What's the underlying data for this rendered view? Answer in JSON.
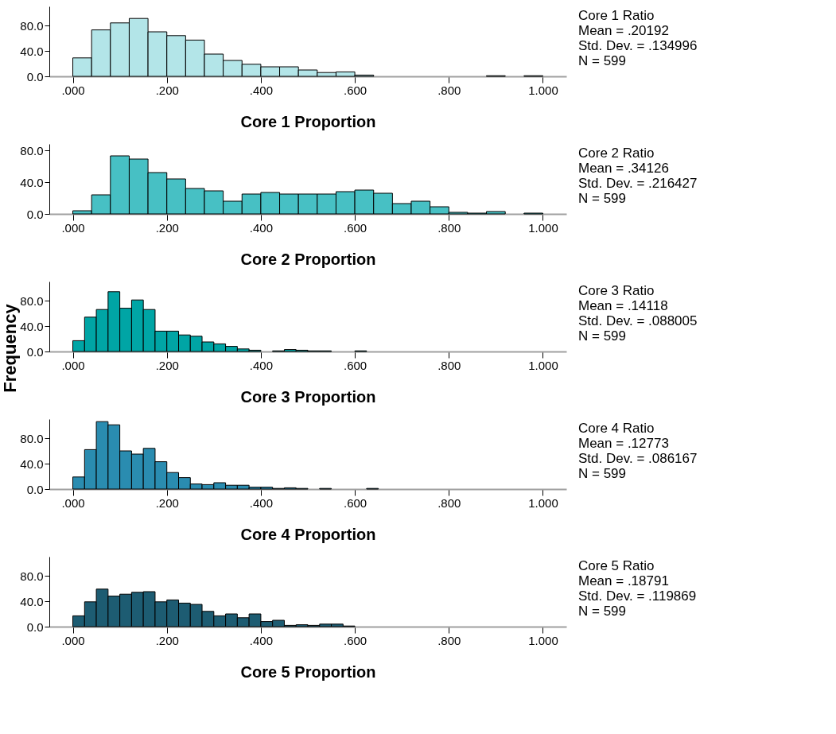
{
  "chart_data": [
    {
      "type": "histogram",
      "xlabel": "Core 1 Proportion",
      "color": "#b3e5e8",
      "bins": [
        0,
        0.04,
        0.08,
        0.12,
        0.16,
        0.2,
        0.24,
        0.28,
        0.32,
        0.36,
        0.4,
        0.44,
        0.48,
        0.52,
        0.56,
        0.6,
        0.64,
        0.68,
        0.72,
        0.76,
        0.8,
        0.84,
        0.88,
        0.92,
        0.96,
        1.0
      ],
      "values": [
        29,
        73,
        84,
        91,
        70,
        64,
        57,
        35,
        25,
        19,
        15,
        15,
        10,
        6,
        7,
        2,
        0,
        0,
        0,
        0,
        0,
        0,
        1,
        0,
        1
      ],
      "xlim": [
        -0.05,
        1.05
      ],
      "ylim": [
        0,
        110
      ],
      "xticks": [
        {
          "value": 0,
          "label": ".000"
        },
        {
          "value": 0.2,
          "label": ".200"
        },
        {
          "value": 0.4,
          "label": ".400"
        },
        {
          "value": 0.6,
          "label": ".600"
        },
        {
          "value": 0.8,
          "label": ".800"
        },
        {
          "value": 1,
          "label": "1.000"
        }
      ],
      "yticks": [
        {
          "value": 0,
          "label": "0.0"
        },
        {
          "value": 40,
          "label": "40.0"
        },
        {
          "value": 80,
          "label": "80.0"
        }
      ],
      "annotations": [
        "Core 1 Ratio",
        "Mean = .20192",
        "Std. Dev. = .134996",
        "N = 599"
      ]
    },
    {
      "type": "histogram",
      "xlabel": "Core 2 Proportion",
      "color": "#47c0c4",
      "bins": [
        0,
        0.04,
        0.08,
        0.12,
        0.16,
        0.2,
        0.24,
        0.28,
        0.32,
        0.36,
        0.4,
        0.44,
        0.48,
        0.52,
        0.56,
        0.6,
        0.64,
        0.68,
        0.72,
        0.76,
        0.8,
        0.84,
        0.88,
        0.92,
        0.96,
        1.0
      ],
      "values": [
        4,
        24,
        73,
        69,
        52,
        44,
        32,
        29,
        16,
        25,
        27,
        25,
        25,
        25,
        28,
        30,
        26,
        13,
        16,
        9,
        2,
        1,
        3,
        0,
        1
      ],
      "xlim": [
        -0.05,
        1.05
      ],
      "ylim": [
        0,
        88
      ],
      "xticks": [
        {
          "value": 0,
          "label": ".000"
        },
        {
          "value": 0.2,
          "label": ".200"
        },
        {
          "value": 0.4,
          "label": ".400"
        },
        {
          "value": 0.6,
          "label": ".600"
        },
        {
          "value": 0.8,
          "label": ".800"
        },
        {
          "value": 1,
          "label": "1.000"
        }
      ],
      "yticks": [
        {
          "value": 0,
          "label": "0.0"
        },
        {
          "value": 40,
          "label": "40.0"
        },
        {
          "value": 80,
          "label": "80.0"
        }
      ],
      "annotations": [
        "Core 2 Ratio",
        "Mean = .34126",
        "Std. Dev. = .216427",
        "N = 599"
      ]
    },
    {
      "type": "histogram",
      "xlabel": "Core 3 Proportion",
      "ylabel": "Frequency",
      "color": "#00a5a5",
      "bins": [
        0,
        0.025,
        0.05,
        0.075,
        0.1,
        0.125,
        0.15,
        0.175,
        0.2,
        0.225,
        0.25,
        0.275,
        0.3,
        0.325,
        0.35,
        0.375,
        0.4,
        0.425,
        0.45,
        0.475,
        0.5,
        0.525,
        0.55,
        0.575,
        0.6,
        0.625
      ],
      "values": [
        17,
        54,
        66,
        94,
        68,
        81,
        66,
        32,
        32,
        26,
        24,
        15,
        12,
        8,
        4,
        2,
        0,
        1,
        3,
        2,
        1,
        1,
        0,
        0,
        1
      ],
      "xlim": [
        -0.05,
        1.05
      ],
      "ylim": [
        0,
        110
      ],
      "xticks": [
        {
          "value": 0,
          "label": ".000"
        },
        {
          "value": 0.2,
          "label": ".200"
        },
        {
          "value": 0.4,
          "label": ".400"
        },
        {
          "value": 0.6,
          "label": ".600"
        },
        {
          "value": 0.8,
          "label": ".800"
        },
        {
          "value": 1,
          "label": "1.000"
        }
      ],
      "yticks": [
        {
          "value": 0,
          "label": "0.0"
        },
        {
          "value": 40,
          "label": "40.0"
        },
        {
          "value": 80,
          "label": "80.0"
        }
      ],
      "annotations": [
        "Core 3 Ratio",
        "Mean = .14118",
        "Std. Dev. = .088005",
        "N = 599"
      ]
    },
    {
      "type": "histogram",
      "xlabel": "Core 4 Proportion",
      "color": "#2a8cb0",
      "bins": [
        0,
        0.025,
        0.05,
        0.075,
        0.1,
        0.125,
        0.15,
        0.175,
        0.2,
        0.225,
        0.25,
        0.275,
        0.3,
        0.325,
        0.35,
        0.375,
        0.4,
        0.425,
        0.45,
        0.475,
        0.5,
        0.525,
        0.55,
        0.575,
        0.6,
        0.625,
        0.65
      ],
      "values": [
        19,
        62,
        106,
        101,
        60,
        55,
        64,
        43,
        26,
        18,
        8,
        7,
        10,
        6,
        6,
        3,
        3,
        1,
        2,
        1,
        0,
        1,
        0,
        0,
        0,
        1
      ],
      "xlim": [
        -0.05,
        1.05
      ],
      "ylim": [
        0,
        110
      ],
      "xticks": [
        {
          "value": 0,
          "label": ".000"
        },
        {
          "value": 0.2,
          "label": ".200"
        },
        {
          "value": 0.4,
          "label": ".400"
        },
        {
          "value": 0.6,
          "label": ".600"
        },
        {
          "value": 0.8,
          "label": ".800"
        },
        {
          "value": 1,
          "label": "1.000"
        }
      ],
      "yticks": [
        {
          "value": 0,
          "label": "0.0"
        },
        {
          "value": 40,
          "label": "40.0"
        },
        {
          "value": 80,
          "label": "80.0"
        }
      ],
      "annotations": [
        "Core 4 Ratio",
        "Mean = .12773",
        "Std. Dev. = .086167",
        "N = 599"
      ]
    },
    {
      "type": "histogram",
      "xlabel": "Core 5 Proportion",
      "color": "#1d5c72",
      "bins": [
        0,
        0.025,
        0.05,
        0.075,
        0.1,
        0.125,
        0.15,
        0.175,
        0.2,
        0.225,
        0.25,
        0.275,
        0.3,
        0.325,
        0.35,
        0.375,
        0.4,
        0.425,
        0.45,
        0.475,
        0.5,
        0.525,
        0.55,
        0.575,
        0.6
      ],
      "values": [
        17,
        39,
        59,
        48,
        51,
        54,
        55,
        39,
        42,
        37,
        35,
        24,
        17,
        20,
        14,
        20,
        8,
        10,
        2,
        3,
        2,
        4,
        4,
        1
      ],
      "xlim": [
        -0.05,
        1.05
      ],
      "ylim": [
        0,
        110
      ],
      "xticks": [
        {
          "value": 0,
          "label": ".000"
        },
        {
          "value": 0.2,
          "label": ".200"
        },
        {
          "value": 0.4,
          "label": ".400"
        },
        {
          "value": 0.6,
          "label": ".600"
        },
        {
          "value": 0.8,
          "label": ".800"
        },
        {
          "value": 1,
          "label": "1.000"
        }
      ],
      "yticks": [
        {
          "value": 0,
          "label": "0.0"
        },
        {
          "value": 40,
          "label": "40.0"
        },
        {
          "value": 80,
          "label": "80.0"
        }
      ],
      "annotations": [
        "Core 5 Ratio",
        "Mean = .18791",
        "Std. Dev. = .119869",
        "N = 599"
      ]
    }
  ]
}
